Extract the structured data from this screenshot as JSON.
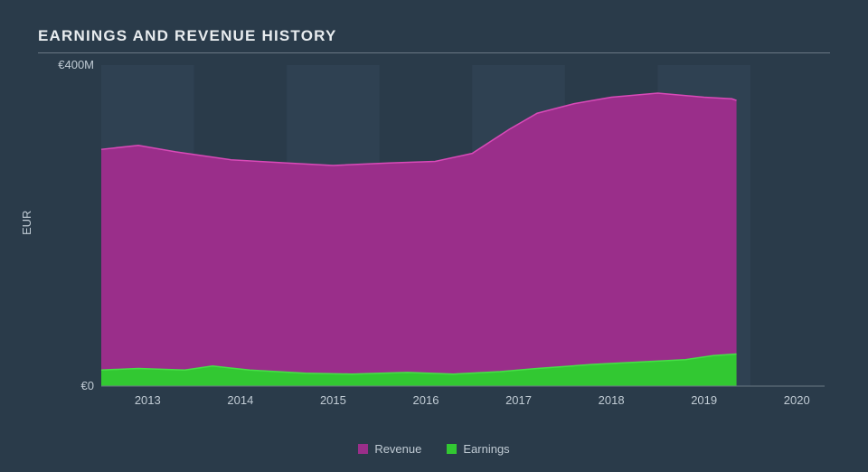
{
  "chart": {
    "type": "area",
    "title": "EARNINGS AND REVENUE HISTORY",
    "ylabel": "EUR",
    "background_color": "#2a3b4a",
    "band_color": "#2f4152",
    "grid_color": "#6a7884",
    "text_color": "#c0cbd4",
    "title_color": "#e8ecef",
    "title_fontsize": 17,
    "label_fontsize": 13,
    "xlim": [
      2012.5,
      2020.3
    ],
    "ylim": [
      0,
      400
    ],
    "yticks": [
      {
        "value": 0,
        "label": "€0"
      },
      {
        "value": 400,
        "label": "€400M"
      }
    ],
    "xticks": [
      2013,
      2014,
      2015,
      2016,
      2017,
      2018,
      2019,
      2020
    ],
    "series": [
      {
        "name": "Revenue",
        "color": "#9a2e8a",
        "line_color": "#d94ab8",
        "points": [
          {
            "x": 2012.5,
            "y": 295
          },
          {
            "x": 2012.9,
            "y": 300
          },
          {
            "x": 2013.3,
            "y": 292
          },
          {
            "x": 2013.9,
            "y": 282
          },
          {
            "x": 2014.5,
            "y": 278
          },
          {
            "x": 2015.0,
            "y": 275
          },
          {
            "x": 2015.6,
            "y": 278
          },
          {
            "x": 2016.1,
            "y": 280
          },
          {
            "x": 2016.5,
            "y": 290
          },
          {
            "x": 2016.9,
            "y": 320
          },
          {
            "x": 2017.2,
            "y": 340
          },
          {
            "x": 2017.6,
            "y": 352
          },
          {
            "x": 2018.0,
            "y": 360
          },
          {
            "x": 2018.5,
            "y": 365
          },
          {
            "x": 2019.0,
            "y": 360
          },
          {
            "x": 2019.3,
            "y": 358
          },
          {
            "x": 2019.35,
            "y": 356
          }
        ]
      },
      {
        "name": "Earnings",
        "color": "#32c832",
        "line_color": "#46e046",
        "points": [
          {
            "x": 2012.5,
            "y": 20
          },
          {
            "x": 2012.9,
            "y": 22
          },
          {
            "x": 2013.4,
            "y": 20
          },
          {
            "x": 2013.7,
            "y": 25
          },
          {
            "x": 2014.1,
            "y": 20
          },
          {
            "x": 2014.7,
            "y": 16
          },
          {
            "x": 2015.2,
            "y": 15
          },
          {
            "x": 2015.8,
            "y": 17
          },
          {
            "x": 2016.3,
            "y": 15
          },
          {
            "x": 2016.8,
            "y": 18
          },
          {
            "x": 2017.2,
            "y": 22
          },
          {
            "x": 2017.8,
            "y": 27
          },
          {
            "x": 2018.3,
            "y": 30
          },
          {
            "x": 2018.8,
            "y": 33
          },
          {
            "x": 2019.1,
            "y": 38
          },
          {
            "x": 2019.35,
            "y": 40
          }
        ]
      }
    ],
    "legend": [
      {
        "label": "Revenue",
        "color": "#9a2e8a"
      },
      {
        "label": "Earnings",
        "color": "#32c832"
      }
    ]
  }
}
